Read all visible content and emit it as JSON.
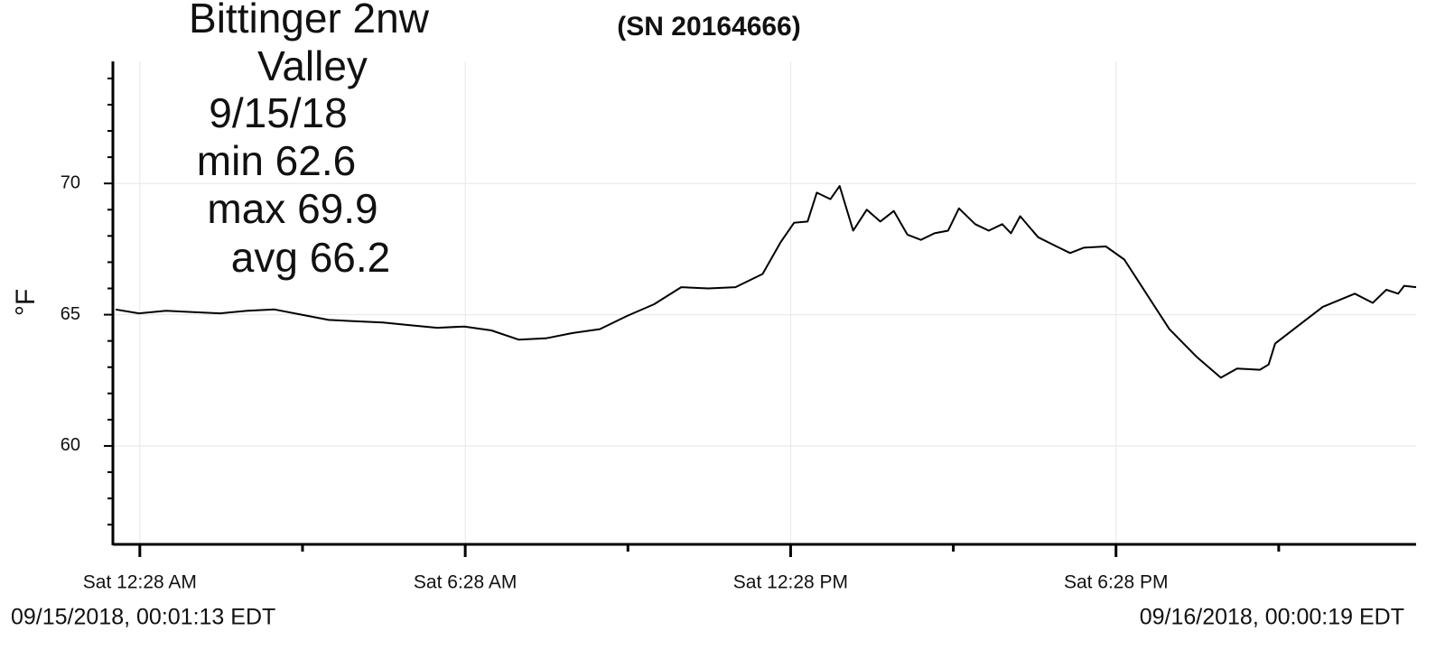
{
  "chart_data": {
    "type": "line",
    "title": "(SN 20164666)",
    "annotations": [
      "Bittinger 2nw",
      "Valley",
      "9/15/18",
      "min 62.6",
      "max 69.9",
      "avg 66.2"
    ],
    "ylabel": "°F",
    "start_label": "09/15/2018, 00:01:13 EDT",
    "end_label": "09/16/2018, 00:00:19 EDT",
    "x": [
      0.02,
      0.45,
      0.95,
      1.45,
      1.95,
      2.45,
      2.95,
      3.45,
      3.95,
      4.45,
      4.95,
      5.45,
      5.95,
      6.45,
      6.95,
      7.45,
      7.95,
      8.45,
      8.95,
      9.45,
      9.95,
      10.45,
      10.95,
      11.45,
      11.95,
      12.28,
      12.53,
      12.78,
      12.95,
      13.2,
      13.37,
      13.62,
      13.87,
      14.12,
      14.37,
      14.62,
      14.87,
      15.12,
      15.37,
      15.57,
      15.87,
      16.12,
      16.37,
      16.53,
      16.7,
      17.03,
      17.37,
      17.62,
      17.87,
      18.28,
      18.62,
      18.95,
      19.45,
      19.95,
      20.4,
      20.7,
      21.12,
      21.28,
      21.4,
      21.87,
      22.28,
      22.87,
      23.2,
      23.45,
      23.67,
      23.78,
      24.0
    ],
    "series": [
      {
        "color": "#000000",
        "values": [
          65.2,
          65.05,
          65.15,
          65.1,
          65.05,
          65.15,
          65.2,
          65.0,
          64.8,
          64.75,
          64.7,
          64.6,
          64.5,
          64.55,
          64.4,
          64.05,
          64.1,
          64.3,
          64.45,
          64.95,
          65.4,
          66.05,
          66.0,
          66.05,
          66.55,
          67.75,
          68.5,
          68.55,
          69.65,
          69.4,
          69.9,
          68.2,
          69.0,
          68.55,
          68.95,
          68.05,
          67.85,
          68.1,
          68.2,
          69.05,
          68.45,
          68.2,
          68.45,
          68.1,
          68.75,
          67.95,
          67.6,
          67.35,
          67.55,
          67.6,
          67.1,
          66.05,
          64.45,
          63.4,
          62.6,
          62.95,
          62.9,
          63.1,
          63.9,
          64.65,
          65.3,
          65.8,
          65.45,
          65.95,
          65.8,
          66.1,
          66.05
        ]
      }
    ],
    "xlim": [
      -0.03,
      24.0
    ],
    "xticks": [
      {
        "value": 0.4667,
        "label": "Sat 12:28 AM"
      },
      {
        "value": 6.4667,
        "label": "Sat 6:28 AM"
      },
      {
        "value": 12.4667,
        "label": "Sat 12:28 PM"
      },
      {
        "value": 18.4667,
        "label": "Sat 6:28 PM"
      }
    ],
    "xminorticks": [
      3.4667,
      9.4667,
      15.4667,
      21.4667
    ],
    "ylim": [
      56.25,
      74.65
    ],
    "yticks": [
      60,
      65,
      70
    ],
    "yminorticks": [
      57,
      58,
      59,
      61,
      62,
      63,
      64,
      66,
      67,
      68,
      69,
      71,
      72,
      73,
      74
    ],
    "grid": true
  }
}
